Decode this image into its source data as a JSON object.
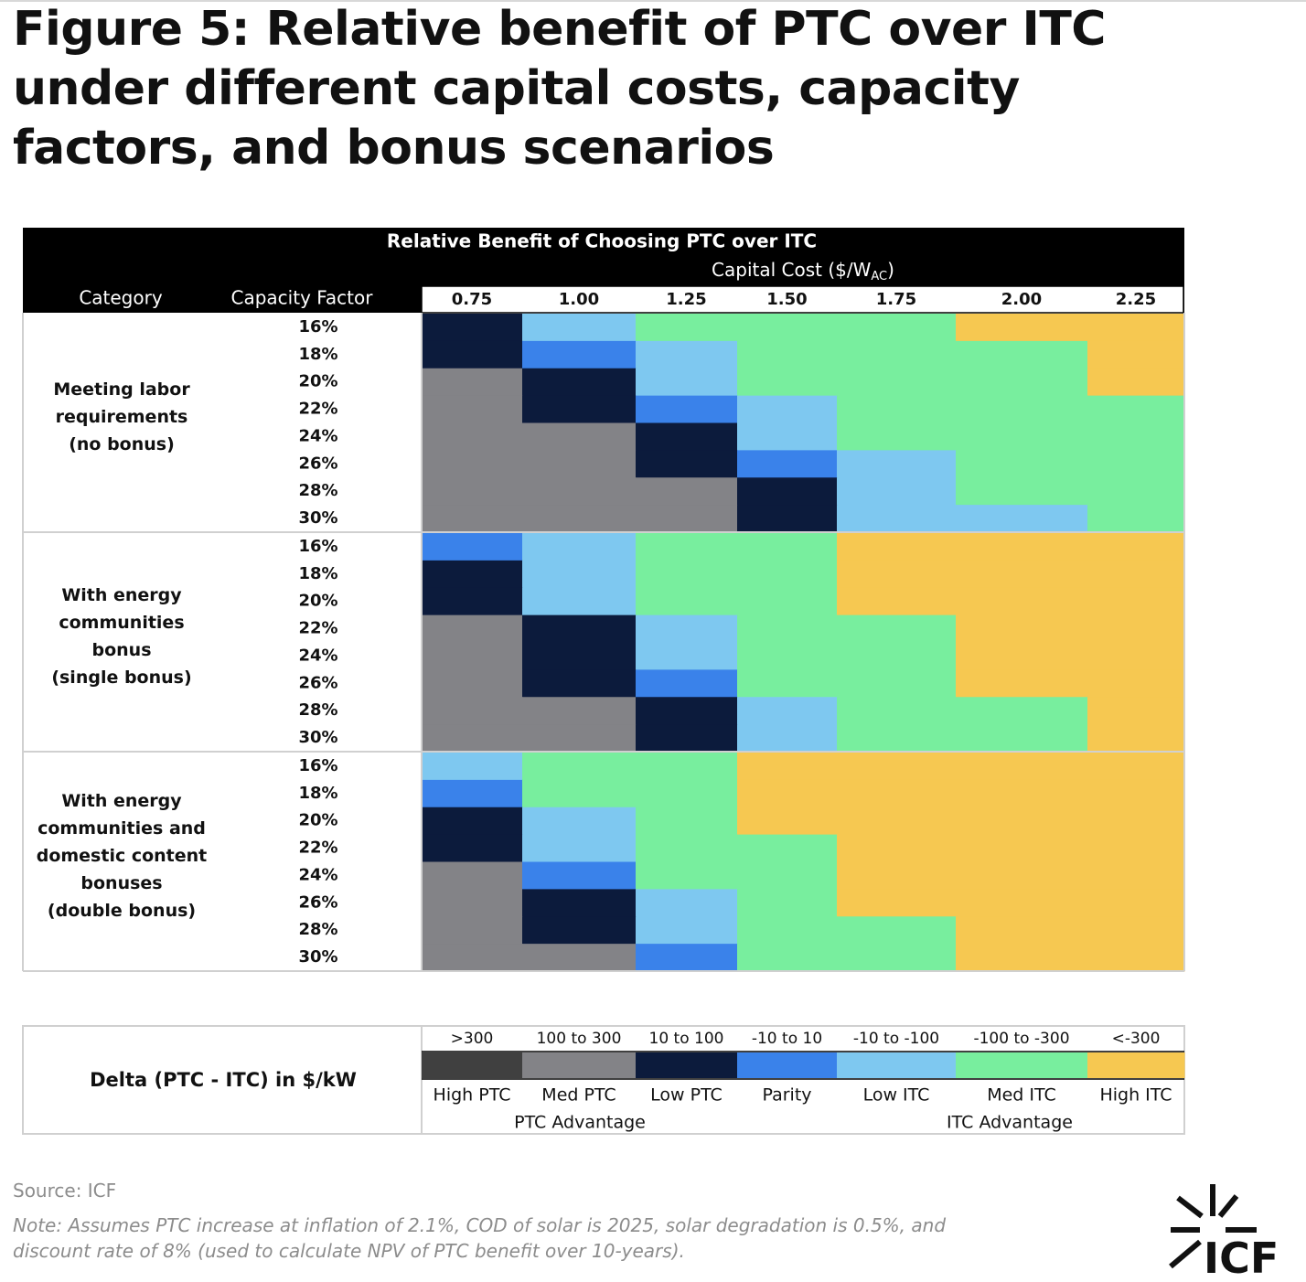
{
  "figure": {
    "title_lines": [
      "Figure 5: Relative benefit of PTC over ITC",
      "under different capital costs, capacity",
      "factors, and bonus scenarios"
    ],
    "source": "Source: ICF",
    "note": "Note: Assumes PTC increase at inflation of 2.1%, COD of solar is 2025, solar degradation is 0.5%, and discount rate of 8% (used to calculate NPV of PTC benefit over 10-years).",
    "logo_text": "ICF"
  },
  "chart_data": {
    "type": "heatmap",
    "title": "Relative Benefit of Choosing PTC over ITC",
    "xlabel_main": "Capital Cost ($/W",
    "xlabel_sub": "AC",
    "xlabel_close": ")",
    "row_headers": {
      "category": "Category",
      "capacity_factor": "Capacity Factor"
    },
    "capital_costs": [
      "0.75",
      "1.00",
      "1.25",
      "1.50",
      "1.75",
      "2.00",
      "2.25"
    ],
    "capacity_factors": [
      "16%",
      "18%",
      "20%",
      "22%",
      "24%",
      "26%",
      "28%",
      "30%"
    ],
    "groups": [
      {
        "label_lines": [
          "Meeting labor",
          "requirements",
          "(no bonus)"
        ],
        "cells": [
          [
            "Low PTC",
            "Low ITC",
            "Med ITC",
            "Med ITC",
            "Med ITC",
            "High ITC",
            "High ITC"
          ],
          [
            "Low PTC",
            "Parity",
            "Low ITC",
            "Med ITC",
            "Med ITC",
            "Med ITC",
            "High ITC"
          ],
          [
            "Med PTC",
            "Low PTC",
            "Low ITC",
            "Med ITC",
            "Med ITC",
            "Med ITC",
            "High ITC"
          ],
          [
            "Med PTC",
            "Low PTC",
            "Parity",
            "Low ITC",
            "Med ITC",
            "Med ITC",
            "Med ITC"
          ],
          [
            "Med PTC",
            "Med PTC",
            "Low PTC",
            "Low ITC",
            "Med ITC",
            "Med ITC",
            "Med ITC"
          ],
          [
            "Med PTC",
            "Med PTC",
            "Low PTC",
            "Parity",
            "Low ITC",
            "Med ITC",
            "Med ITC"
          ],
          [
            "Med PTC",
            "Med PTC",
            "Med PTC",
            "Low PTC",
            "Low ITC",
            "Med ITC",
            "Med ITC"
          ],
          [
            "Med PTC",
            "Med PTC",
            "Med PTC",
            "Low PTC",
            "Low ITC",
            "Low ITC",
            "Med ITC"
          ]
        ]
      },
      {
        "label_lines": [
          "With energy",
          "communities",
          "bonus",
          "(single bonus)"
        ],
        "cells": [
          [
            "Parity",
            "Low ITC",
            "Med ITC",
            "Med ITC",
            "High ITC",
            "High ITC",
            "High ITC"
          ],
          [
            "Low PTC",
            "Low ITC",
            "Med ITC",
            "Med ITC",
            "High ITC",
            "High ITC",
            "High ITC"
          ],
          [
            "Low PTC",
            "Low ITC",
            "Med ITC",
            "Med ITC",
            "High ITC",
            "High ITC",
            "High ITC"
          ],
          [
            "Med PTC",
            "Low PTC",
            "Low ITC",
            "Med ITC",
            "Med ITC",
            "High ITC",
            "High ITC"
          ],
          [
            "Med PTC",
            "Low PTC",
            "Low ITC",
            "Med ITC",
            "Med ITC",
            "High ITC",
            "High ITC"
          ],
          [
            "Med PTC",
            "Low PTC",
            "Parity",
            "Med ITC",
            "Med ITC",
            "High ITC",
            "High ITC"
          ],
          [
            "Med PTC",
            "Med PTC",
            "Low PTC",
            "Low ITC",
            "Med ITC",
            "Med ITC",
            "High ITC"
          ],
          [
            "Med PTC",
            "Med PTC",
            "Low PTC",
            "Low ITC",
            "Med ITC",
            "Med ITC",
            "High ITC"
          ]
        ]
      },
      {
        "label_lines": [
          "With energy",
          "communities and",
          "domestic content",
          "bonuses",
          "(double bonus)"
        ],
        "cells": [
          [
            "Low ITC",
            "Med ITC",
            "Med ITC",
            "High ITC",
            "High ITC",
            "High ITC",
            "High ITC"
          ],
          [
            "Parity",
            "Med ITC",
            "Med ITC",
            "High ITC",
            "High ITC",
            "High ITC",
            "High ITC"
          ],
          [
            "Low PTC",
            "Low ITC",
            "Med ITC",
            "High ITC",
            "High ITC",
            "High ITC",
            "High ITC"
          ],
          [
            "Low PTC",
            "Low ITC",
            "Med ITC",
            "Med ITC",
            "High ITC",
            "High ITC",
            "High ITC"
          ],
          [
            "Med PTC",
            "Parity",
            "Med ITC",
            "Med ITC",
            "High ITC",
            "High ITC",
            "High ITC"
          ],
          [
            "Med PTC",
            "Low PTC",
            "Low ITC",
            "Med ITC",
            "High ITC",
            "High ITC",
            "High ITC"
          ],
          [
            "Med PTC",
            "Low PTC",
            "Low ITC",
            "Med ITC",
            "Med ITC",
            "High ITC",
            "High ITC"
          ],
          [
            "Med PTC",
            "Med PTC",
            "Parity",
            "Med ITC",
            "Med ITC",
            "High ITC",
            "High ITC"
          ]
        ]
      }
    ],
    "legend": {
      "title": "Delta (PTC - ITC)  in $/kW",
      "items": [
        {
          "range": ">300",
          "label": "High PTC",
          "color": "#404040"
        },
        {
          "range": "100 to 300",
          "label": "Med PTC",
          "color": "#838387"
        },
        {
          "range": "10 to 100",
          "label": "Low PTC",
          "color": "#0c1b3c"
        },
        {
          "range": "-10 to 10",
          "label": "Parity",
          "color": "#3a82ea"
        },
        {
          "range": "-10 to -100",
          "label": "Low ITC",
          "color": "#7ec8f0"
        },
        {
          "range": "-100 to -300",
          "label": "Med ITC",
          "color": "#78ee9e"
        },
        {
          "range": "<-300",
          "label": "High ITC",
          "color": "#f6c851"
        }
      ],
      "group_ptc": "PTC Advantage",
      "group_itc": "ITC Advantage"
    }
  }
}
